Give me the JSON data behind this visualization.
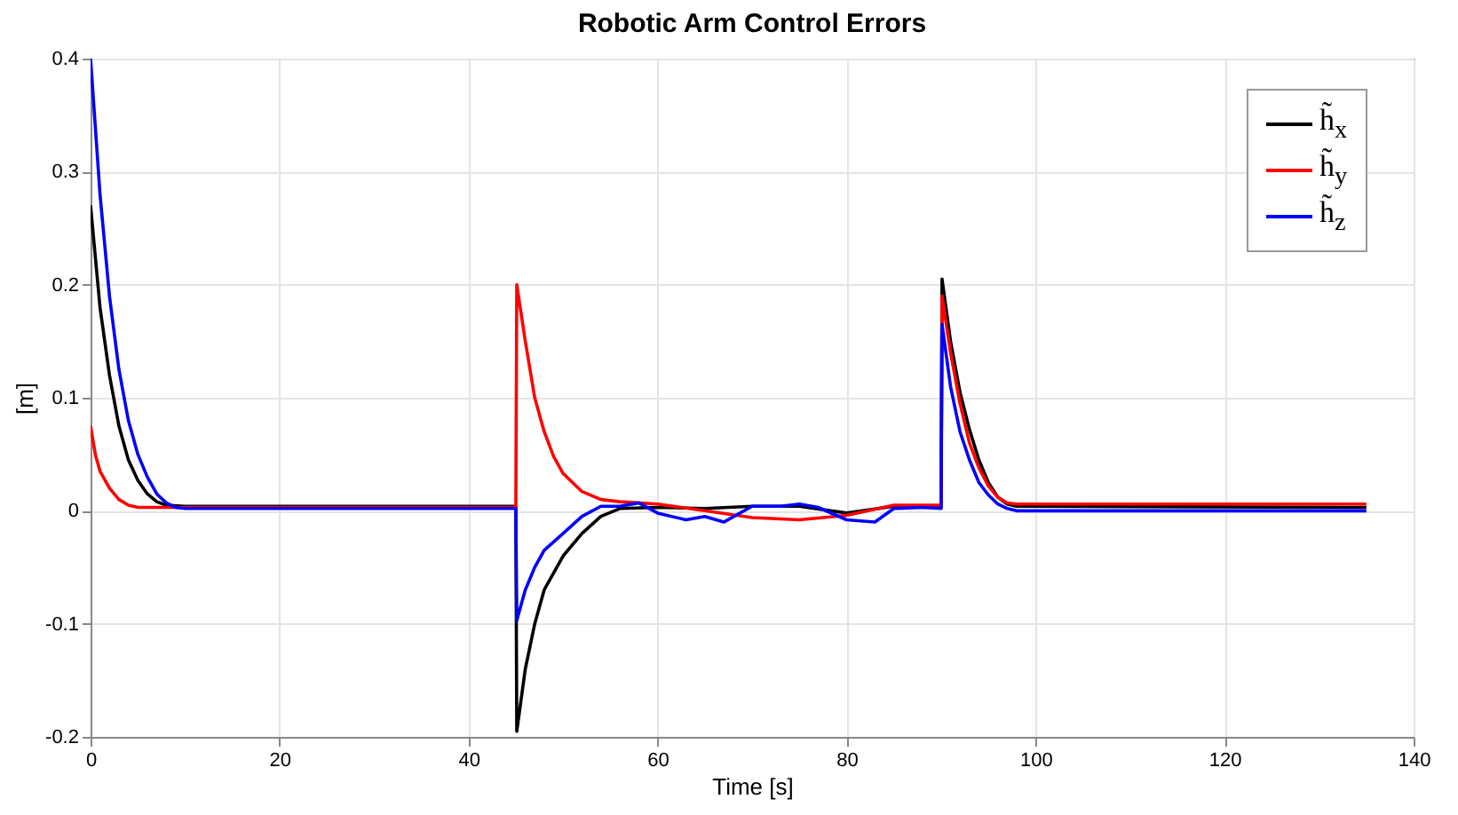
{
  "chart_data": {
    "type": "line",
    "title": "Robotic Arm Control Errors",
    "xlabel": "Time [s]",
    "ylabel": "[m]",
    "xlim": [
      0,
      140
    ],
    "xticks": [
      0,
      20,
      40,
      60,
      80,
      100,
      120,
      140
    ],
    "ylim": [
      -0.2,
      0.4
    ],
    "yticks": [
      -0.2,
      -0.1,
      0,
      0.1,
      0.2,
      0.3,
      0.4
    ],
    "grid": true,
    "legend": "top right",
    "line_style": "solid",
    "series": [
      {
        "name": "h̃$_{x}$",
        "color": "#000000",
        "x": [
          0,
          1,
          2,
          3,
          4,
          5,
          6,
          7,
          8,
          10,
          20,
          45,
          45.1,
          46,
          47,
          48,
          50,
          52,
          54,
          56,
          60,
          65,
          70,
          75,
          80,
          85,
          90,
          90.1,
          91,
          92,
          93,
          94,
          95,
          96,
          97,
          98,
          135
        ],
        "values": [
          0.27,
          0.18,
          0.12,
          0.075,
          0.045,
          0.027,
          0.015,
          0.008,
          0.005,
          0.004,
          0.004,
          0.004,
          -0.195,
          -0.14,
          -0.1,
          -0.07,
          -0.04,
          -0.02,
          -0.005,
          0.002,
          0.003,
          0.002,
          0.004,
          0.004,
          -0.002,
          0.004,
          0.003,
          0.205,
          0.15,
          0.105,
          0.072,
          0.045,
          0.025,
          0.012,
          0.006,
          0.004,
          0.003
        ]
      },
      {
        "name": "h̃$_{y}$",
        "color": "#ff0000",
        "x": [
          0,
          0.5,
          1,
          2,
          3,
          4,
          5,
          10,
          45,
          45.1,
          46,
          47,
          48,
          49,
          50,
          52,
          54,
          56,
          60,
          65,
          70,
          75,
          80,
          85,
          90,
          90.1,
          91,
          92,
          93,
          94,
          95,
          96,
          97,
          98,
          135
        ],
        "values": [
          0.075,
          0.05,
          0.035,
          0.02,
          0.01,
          0.005,
          0.003,
          0.003,
          0.003,
          0.2,
          0.15,
          0.1,
          0.07,
          0.048,
          0.033,
          0.017,
          0.01,
          0.008,
          0.006,
          0,
          -0.006,
          -0.008,
          -0.004,
          0.005,
          0.005,
          0.19,
          0.14,
          0.095,
          0.06,
          0.038,
          0.022,
          0.012,
          0.007,
          0.006,
          0.006
        ]
      },
      {
        "name": "h̃$_{z}$",
        "color": "#0000ff",
        "x": [
          0,
          1,
          2,
          3,
          4,
          5,
          6,
          7,
          8,
          9,
          10,
          45,
          45.1,
          46,
          47,
          48,
          50,
          52,
          54,
          56,
          58,
          60,
          63,
          65,
          67,
          70,
          73,
          75,
          77,
          80,
          83,
          85,
          88,
          90,
          90.1,
          91,
          92,
          93,
          94,
          95,
          96,
          97,
          98,
          135
        ],
        "values": [
          0.4,
          0.28,
          0.19,
          0.125,
          0.08,
          0.05,
          0.03,
          0.015,
          0.007,
          0.003,
          0.002,
          0.002,
          -0.097,
          -0.07,
          -0.05,
          -0.035,
          -0.02,
          -0.005,
          0.004,
          0.004,
          0.007,
          -0.002,
          -0.008,
          -0.005,
          -0.01,
          0.004,
          0.004,
          0.006,
          0.003,
          -0.008,
          -0.01,
          0.002,
          0.003,
          0.002,
          0.165,
          0.11,
          0.07,
          0.045,
          0.025,
          0.014,
          0.006,
          0.002,
          0,
          0
        ]
      }
    ]
  }
}
